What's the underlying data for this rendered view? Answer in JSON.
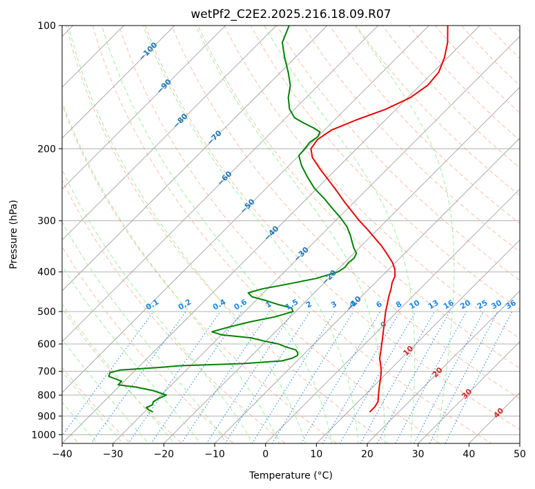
{
  "chart_data": {
    "type": "skew-t",
    "title": "wetPf2_C2E2.2025.216.18.09.R07",
    "xlabel": "Temperature (°C)",
    "ylabel": "Pressure (hPa)",
    "xlim": [
      -40,
      50
    ],
    "ylim": [
      1050,
      100
    ],
    "y_scale": "log",
    "grid": true,
    "x_ticks": [
      "−40",
      "−30",
      "−20",
      "−10",
      "0",
      "10",
      "20",
      "30",
      "40",
      "50"
    ],
    "x_tick_values": [
      -40,
      -30,
      -20,
      -10,
      0,
      10,
      20,
      30,
      40,
      50
    ],
    "y_ticks": [
      "100",
      "200",
      "300",
      "400",
      "500",
      "600",
      "700",
      "800",
      "900",
      "1000"
    ],
    "y_tick_values": [
      100,
      200,
      300,
      400,
      500,
      600,
      700,
      800,
      900,
      1000
    ],
    "series": [
      {
        "kind": "temperature",
        "color": "#ee0000",
        "points": [
          [
            880,
            14.3
          ],
          [
            855,
            14.3
          ],
          [
            830,
            13.9
          ],
          [
            800,
            12.7
          ],
          [
            765,
            11.3
          ],
          [
            730,
            9.9
          ],
          [
            700,
            8.6
          ],
          [
            680,
            7.5
          ],
          [
            650,
            5.7
          ],
          [
            620,
            4.3
          ],
          [
            590,
            2.8
          ],
          [
            560,
            1.2
          ],
          [
            530,
            -0.5
          ],
          [
            500,
            -2.3
          ],
          [
            480,
            -3.4
          ],
          [
            460,
            -4.6
          ],
          [
            440,
            -5.7
          ],
          [
            425,
            -6.7
          ],
          [
            410,
            -7.4
          ],
          [
            395,
            -8.7
          ],
          [
            380,
            -10.5
          ],
          [
            360,
            -13.6
          ],
          [
            345,
            -16.1
          ],
          [
            330,
            -19.0
          ],
          [
            315,
            -22.0
          ],
          [
            300,
            -25.3
          ],
          [
            285,
            -28.5
          ],
          [
            270,
            -31.9
          ],
          [
            255,
            -35.3
          ],
          [
            240,
            -39.0
          ],
          [
            225,
            -43.0
          ],
          [
            210,
            -47.0
          ],
          [
            200,
            -49.0
          ],
          [
            190,
            -49.5
          ],
          [
            180,
            -48.6
          ],
          [
            170,
            -45.7
          ],
          [
            160,
            -42.0
          ],
          [
            150,
            -39.5
          ],
          [
            140,
            -38.5
          ],
          [
            130,
            -38.9
          ],
          [
            120,
            -40.6
          ],
          [
            110,
            -43.0
          ],
          [
            100,
            -46.3
          ]
        ]
      },
      {
        "kind": "dewpoint",
        "color": "#008000",
        "points": [
          [
            880,
            -28.3
          ],
          [
            870,
            -29.5
          ],
          [
            858,
            -30.5
          ],
          [
            845,
            -29.8
          ],
          [
            830,
            -30.3
          ],
          [
            815,
            -29.8
          ],
          [
            800,
            -29.0
          ],
          [
            780,
            -32.5
          ],
          [
            765,
            -36.5
          ],
          [
            755,
            -40.5
          ],
          [
            740,
            -40.5
          ],
          [
            720,
            -44.0
          ],
          [
            705,
            -44.5
          ],
          [
            695,
            -43.0
          ],
          [
            685,
            -36.0
          ],
          [
            678,
            -32.0
          ],
          [
            670,
            -20.0
          ],
          [
            660,
            -13.0
          ],
          [
            650,
            -11.5
          ],
          [
            640,
            -11.0
          ],
          [
            630,
            -11.5
          ],
          [
            620,
            -12.5
          ],
          [
            610,
            -15.0
          ],
          [
            600,
            -17.0
          ],
          [
            590,
            -20.5
          ],
          [
            580,
            -23.5
          ],
          [
            570,
            -30.0
          ],
          [
            560,
            -32.5
          ],
          [
            545,
            -30.0
          ],
          [
            530,
            -27.0
          ],
          [
            515,
            -23.0
          ],
          [
            500,
            -20.5
          ],
          [
            490,
            -21.5
          ],
          [
            480,
            -25.0
          ],
          [
            470,
            -28.0
          ],
          [
            460,
            -31.5
          ],
          [
            450,
            -33.0
          ],
          [
            440,
            -31.0
          ],
          [
            430,
            -27.5
          ],
          [
            415,
            -22.5
          ],
          [
            400,
            -19.5
          ],
          [
            390,
            -19.0
          ],
          [
            380,
            -19.2
          ],
          [
            370,
            -19.0
          ],
          [
            360,
            -19.5
          ],
          [
            350,
            -21.0
          ],
          [
            340,
            -22.3
          ],
          [
            325,
            -24.3
          ],
          [
            310,
            -26.6
          ],
          [
            295,
            -29.6
          ],
          [
            280,
            -33.0
          ],
          [
            265,
            -36.5
          ],
          [
            250,
            -40.5
          ],
          [
            235,
            -44.0
          ],
          [
            220,
            -47.5
          ],
          [
            208,
            -50.0
          ],
          [
            200,
            -50.2
          ],
          [
            193,
            -50.5
          ],
          [
            187,
            -50.0
          ],
          [
            182,
            -50.5
          ],
          [
            178,
            -52.5
          ],
          [
            173,
            -55.5
          ],
          [
            168,
            -58.3
          ],
          [
            160,
            -61.0
          ],
          [
            150,
            -63.5
          ],
          [
            140,
            -65.5
          ],
          [
            130,
            -68.5
          ],
          [
            120,
            -72.0
          ],
          [
            110,
            -75.5
          ],
          [
            100,
            -77.5
          ]
        ]
      }
    ],
    "dry_adiabats_theta_C": [
      -40,
      -30,
      -20,
      -10,
      0,
      10,
      20,
      30,
      40,
      50,
      60,
      70,
      80,
      90,
      100,
      110,
      120,
      130,
      140,
      150,
      160,
      170,
      180,
      190,
      200,
      210,
      220,
      230,
      240,
      250
    ],
    "moist_adiabats_C": [
      -30,
      -25,
      -20,
      -15,
      -10,
      -5,
      0,
      5,
      10,
      15,
      20,
      25,
      30,
      35
    ],
    "mixing_ratio_lines_gkg": [
      "0.1",
      "0.2",
      "0.4",
      "0.6",
      "1",
      "1.5",
      "2",
      "3",
      "4",
      "6",
      "8",
      "10",
      "13",
      "16",
      "20",
      "25",
      "30",
      "36"
    ],
    "mixing_ratio_values": [
      0.1,
      0.2,
      0.4,
      0.6,
      1,
      1.5,
      2,
      3,
      4,
      6,
      8,
      10,
      13,
      16,
      20,
      25,
      30,
      36
    ],
    "isotherm_labels_blue": [
      "−100",
      "−90",
      "−80",
      "−70",
      "−60",
      "−50",
      "−40",
      "−30",
      "−20",
      "−10"
    ],
    "isotherm_label_values_blue": [
      -100,
      -90,
      -80,
      -70,
      -60,
      -50,
      -40,
      -30,
      -20,
      -10
    ],
    "isotherm_label_pressures_blue": [
      115,
      140,
      170,
      187,
      235,
      275,
      320,
      360,
      410,
      475
    ],
    "isotherm_labels_gray": [
      "0"
    ],
    "isotherm_label_values_gray": [
      0
    ],
    "isotherm_label_pressures_gray": [
      535
    ],
    "isotherm_labels_red": [
      "10",
      "20",
      "30",
      "40"
    ],
    "isotherm_label_values_red": [
      10,
      20,
      30,
      40
    ],
    "isotherm_label_pressures_red": [
      620,
      700,
      790,
      880
    ],
    "colors": {
      "temperature": "#ee0000",
      "dewpoint": "#008000",
      "isotherm": "#a9a9a9",
      "dry_adiabat": "#ffa07a",
      "moist_adiabat": "#90ee90",
      "mixing_ratio": "#1e88e5",
      "cold_label": "#1f77b4",
      "zero_label": "#808080",
      "warm_label": "#d62728"
    }
  }
}
